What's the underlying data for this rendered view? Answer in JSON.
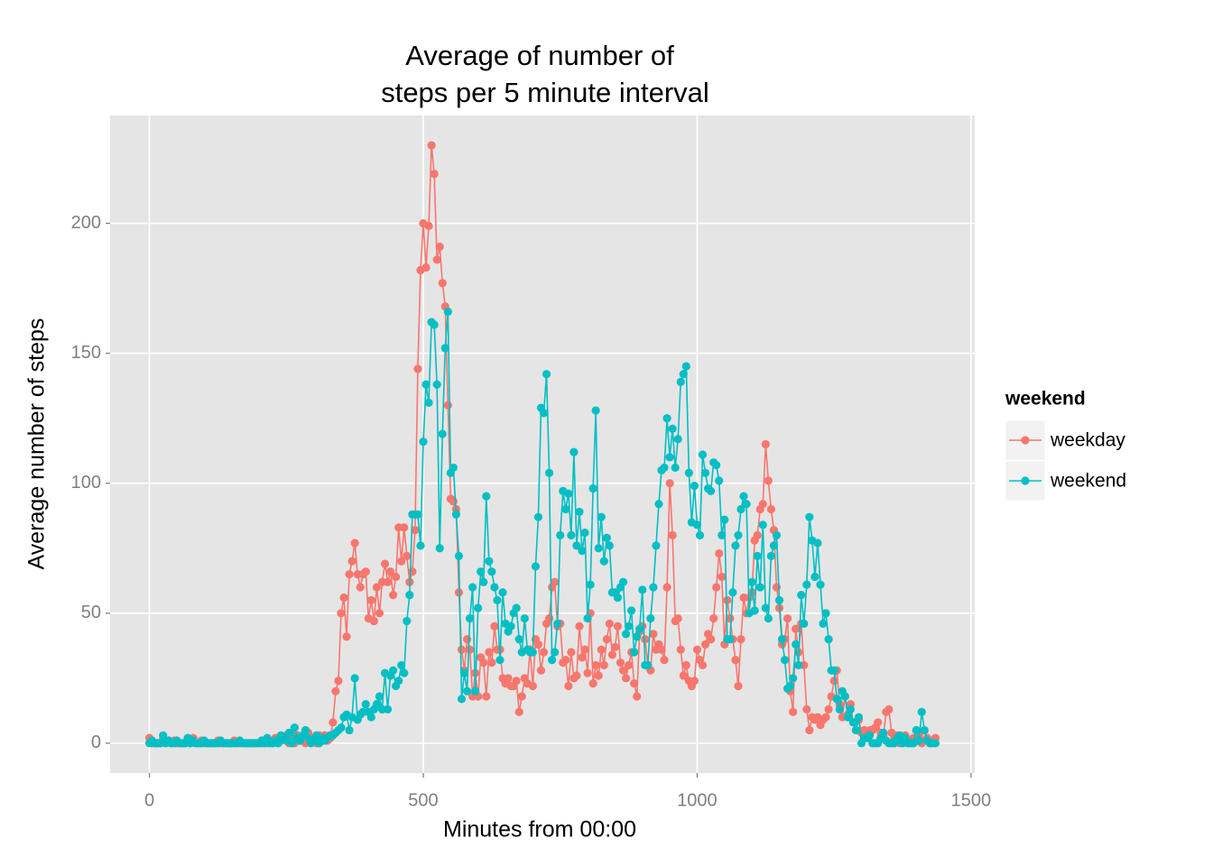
{
  "chart_data": {
    "type": "line",
    "title": [
      "Average of number of",
      "steps per 5 minute interval"
    ],
    "x_label": "Minutes from 00:00",
    "y_label": "Average number of steps",
    "legend_title": "weekend",
    "legend_position": "right",
    "grid": true,
    "markers": true,
    "xlim": [
      -71.75,
      1506.75
    ],
    "ylim": [
      -11.5,
      241.5
    ],
    "xticks": [
      0,
      500,
      1000,
      1500
    ],
    "yticks": [
      0,
      50,
      100,
      150,
      200
    ],
    "x": [
      0,
      5,
      10,
      15,
      20,
      25,
      30,
      35,
      40,
      45,
      50,
      55,
      60,
      65,
      70,
      75,
      80,
      85,
      90,
      95,
      100,
      105,
      110,
      115,
      120,
      125,
      130,
      135,
      140,
      145,
      150,
      155,
      160,
      165,
      170,
      175,
      180,
      185,
      190,
      195,
      200,
      205,
      210,
      215,
      220,
      225,
      230,
      235,
      240,
      245,
      250,
      255,
      260,
      265,
      270,
      275,
      280,
      285,
      290,
      295,
      300,
      305,
      310,
      315,
      320,
      325,
      330,
      335,
      340,
      345,
      350,
      355,
      360,
      365,
      370,
      375,
      380,
      385,
      390,
      395,
      400,
      405,
      410,
      415,
      420,
      425,
      430,
      435,
      440,
      445,
      450,
      455,
      460,
      465,
      470,
      475,
      480,
      485,
      490,
      495,
      500,
      505,
      510,
      515,
      520,
      525,
      530,
      535,
      540,
      545,
      550,
      555,
      560,
      565,
      570,
      575,
      580,
      585,
      590,
      595,
      600,
      605,
      610,
      615,
      620,
      625,
      630,
      635,
      640,
      645,
      650,
      655,
      660,
      665,
      670,
      675,
      680,
      685,
      690,
      695,
      700,
      705,
      710,
      715,
      720,
      725,
      730,
      735,
      740,
      745,
      750,
      755,
      760,
      765,
      770,
      775,
      780,
      785,
      790,
      795,
      800,
      805,
      810,
      815,
      820,
      825,
      830,
      835,
      840,
      845,
      850,
      855,
      860,
      865,
      870,
      875,
      880,
      885,
      890,
      895,
      900,
      905,
      910,
      915,
      920,
      925,
      930,
      935,
      940,
      945,
      950,
      955,
      960,
      965,
      970,
      975,
      980,
      985,
      990,
      995,
      1000,
      1005,
      1010,
      1015,
      1020,
      1025,
      1030,
      1035,
      1040,
      1045,
      1050,
      1055,
      1060,
      1065,
      1070,
      1075,
      1080,
      1085,
      1090,
      1095,
      1100,
      1105,
      1110,
      1115,
      1120,
      1125,
      1130,
      1135,
      1140,
      1145,
      1150,
      1155,
      1160,
      1165,
      1170,
      1175,
      1180,
      1185,
      1190,
      1195,
      1200,
      1205,
      1210,
      1215,
      1220,
      1225,
      1230,
      1235,
      1240,
      1245,
      1250,
      1255,
      1260,
      1265,
      1270,
      1275,
      1280,
      1285,
      1290,
      1295,
      1300,
      1305,
      1310,
      1315,
      1320,
      1325,
      1330,
      1335,
      1340,
      1345,
      1350,
      1355,
      1360,
      1365,
      1370,
      1375,
      1380,
      1385,
      1390,
      1395,
      1400,
      1405,
      1410,
      1415,
      1420,
      1425,
      1430,
      1435
    ],
    "series": [
      {
        "name": "weekday",
        "color": "#F8766D",
        "values": [
          2,
          0,
          0,
          0,
          0,
          2,
          0,
          1,
          0,
          1,
          0,
          0,
          0,
          0,
          1,
          0,
          2,
          0,
          0,
          1,
          0,
          0,
          0,
          0,
          0,
          1,
          0,
          0,
          0,
          0,
          0,
          1,
          0,
          0,
          0,
          0,
          0,
          0,
          0,
          0,
          0,
          0,
          1,
          0,
          1,
          0,
          2,
          0,
          1,
          2,
          3,
          0,
          2,
          0,
          3,
          2,
          1,
          0,
          4,
          2,
          1,
          0,
          3,
          2,
          3,
          1,
          2,
          8,
          20,
          24,
          50,
          56,
          41,
          65,
          70,
          77,
          65,
          60,
          65,
          66,
          48,
          55,
          47,
          60,
          50,
          62,
          69,
          62,
          66,
          57,
          64,
          83,
          70,
          83,
          72,
          62,
          66,
          82,
          144,
          182,
          200,
          183,
          199,
          230,
          219,
          186,
          191,
          177,
          168,
          130,
          94,
          93,
          90,
          58,
          36,
          28,
          40,
          36,
          18,
          27,
          18,
          33,
          31,
          18,
          35,
          31,
          45,
          36,
          36,
          25,
          23,
          25,
          22,
          22,
          24,
          12,
          18,
          25,
          23,
          36,
          22,
          40,
          38,
          28,
          35,
          46,
          48,
          60,
          62,
          45,
          46,
          31,
          32,
          22,
          35,
          25,
          26,
          45,
          33,
          36,
          27,
          50,
          23,
          30,
          26,
          36,
          30,
          40,
          46,
          34,
          37,
          45,
          31,
          28,
          25,
          30,
          35,
          23,
          18,
          43,
          45,
          40,
          30,
          28,
          42,
          36,
          38,
          36,
          32,
          60,
          100,
          80,
          47,
          48,
          36,
          26,
          30,
          24,
          22,
          24,
          36,
          32,
          30,
          38,
          42,
          40,
          48,
          60,
          73,
          64,
          38,
          55,
          48,
          40,
          32,
          22,
          40,
          56,
          50,
          56,
          58,
          78,
          80,
          90,
          92,
          115,
          101,
          90,
          82,
          60,
          52,
          38,
          40,
          48,
          20,
          12,
          44,
          35,
          46,
          30,
          13,
          5,
          10,
          9,
          10,
          7,
          9,
          10,
          13,
          18,
          24,
          28,
          15,
          10,
          18,
          11,
          15,
          8,
          5,
          9,
          4,
          5,
          2,
          5,
          5,
          6,
          8,
          4,
          3,
          12,
          13,
          4,
          2,
          3,
          0,
          0,
          3,
          1,
          0,
          2,
          1,
          3,
          0,
          1,
          2,
          0,
          1,
          2
        ]
      },
      {
        "name": "weekend",
        "color": "#00BFC4",
        "values": [
          0,
          1,
          0,
          0,
          0,
          3,
          0,
          1,
          0,
          0,
          1,
          0,
          0,
          0,
          2,
          0,
          1,
          0,
          0,
          0,
          1,
          0,
          0,
          0,
          0,
          0,
          1,
          0,
          0,
          0,
          0,
          0,
          0,
          1,
          0,
          0,
          0,
          0,
          0,
          0,
          0,
          1,
          0,
          2,
          0,
          0,
          1,
          0,
          3,
          2,
          1,
          4,
          0,
          6,
          2,
          1,
          3,
          5,
          2,
          0,
          1,
          3,
          0,
          2,
          1,
          2,
          3,
          3,
          4,
          5,
          6,
          10,
          11,
          5,
          10,
          25,
          9,
          11,
          12,
          15,
          12,
          10,
          13,
          15,
          18,
          13,
          27,
          13,
          26,
          28,
          22,
          24,
          30,
          27,
          47,
          57,
          88,
          88,
          88,
          76,
          116,
          138,
          131,
          162,
          161,
          138,
          75,
          119,
          152,
          166,
          104,
          106,
          88,
          72,
          17,
          27,
          20,
          48,
          60,
          20,
          52,
          66,
          62,
          95,
          70,
          66,
          60,
          55,
          32,
          58,
          46,
          43,
          45,
          50,
          52,
          40,
          35,
          48,
          36,
          35,
          35,
          68,
          87,
          129,
          127,
          142,
          104,
          32,
          35,
          46,
          80,
          97,
          90,
          96,
          80,
          112,
          76,
          89,
          74,
          81,
          48,
          61,
          98,
          128,
          75,
          87,
          70,
          79,
          76,
          58,
          58,
          56,
          60,
          62,
          42,
          45,
          51,
          35,
          41,
          44,
          59,
          30,
          30,
          48,
          60,
          76,
          92,
          105,
          106,
          125,
          110,
          121,
          106,
          117,
          139,
          142,
          145,
          104,
          85,
          99,
          84,
          80,
          111,
          104,
          98,
          97,
          108,
          107,
          101,
          80,
          86,
          40,
          40,
          58,
          76,
          80,
          90,
          95,
          92,
          50,
          62,
          51,
          72,
          60,
          84,
          52,
          48,
          72,
          76,
          80,
          55,
          40,
          32,
          21,
          22,
          25,
          38,
          30,
          57,
          46,
          61,
          87,
          78,
          64,
          77,
          61,
          46,
          50,
          40,
          28,
          28,
          17,
          13,
          20,
          18,
          10,
          13,
          8,
          5,
          10,
          0,
          2,
          2,
          3,
          0,
          0,
          0,
          2,
          4,
          1,
          0,
          0,
          0,
          2,
          3,
          0,
          2,
          0,
          0,
          0,
          5,
          1,
          12,
          5,
          1,
          0,
          0,
          0
        ]
      }
    ]
  }
}
